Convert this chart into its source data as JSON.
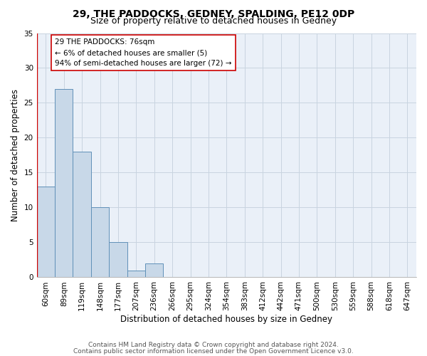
{
  "title": "29, THE PADDOCKS, GEDNEY, SPALDING, PE12 0DP",
  "subtitle": "Size of property relative to detached houses in Gedney",
  "xlabel": "Distribution of detached houses by size in Gedney",
  "ylabel": "Number of detached properties",
  "categories": [
    "60sqm",
    "89sqm",
    "119sqm",
    "148sqm",
    "177sqm",
    "207sqm",
    "236sqm",
    "266sqm",
    "295sqm",
    "324sqm",
    "354sqm",
    "383sqm",
    "412sqm",
    "442sqm",
    "471sqm",
    "500sqm",
    "530sqm",
    "559sqm",
    "588sqm",
    "618sqm",
    "647sqm"
  ],
  "values": [
    13,
    27,
    18,
    10,
    5,
    1,
    2,
    0,
    0,
    0,
    0,
    0,
    0,
    0,
    0,
    0,
    0,
    0,
    0,
    0,
    0
  ],
  "bar_color": "#c8d8e8",
  "bar_edge_color": "#6090b8",
  "grid_color": "#c8d4e0",
  "background_color": "#eaf0f8",
  "property_line_color": "#cc0000",
  "annotation_text": "29 THE PADDOCKS: 76sqm\n← 6% of detached houses are smaller (5)\n94% of semi-detached houses are larger (72) →",
  "annotation_box_color": "#cc0000",
  "ylim": [
    0,
    35
  ],
  "yticks": [
    0,
    5,
    10,
    15,
    20,
    25,
    30,
    35
  ],
  "footer_line1": "Contains HM Land Registry data © Crown copyright and database right 2024.",
  "footer_line2": "Contains public sector information licensed under the Open Government Licence v3.0.",
  "title_fontsize": 10,
  "subtitle_fontsize": 9,
  "axis_label_fontsize": 8.5,
  "tick_fontsize": 7.5,
  "annotation_fontsize": 7.5,
  "footer_fontsize": 6.5
}
